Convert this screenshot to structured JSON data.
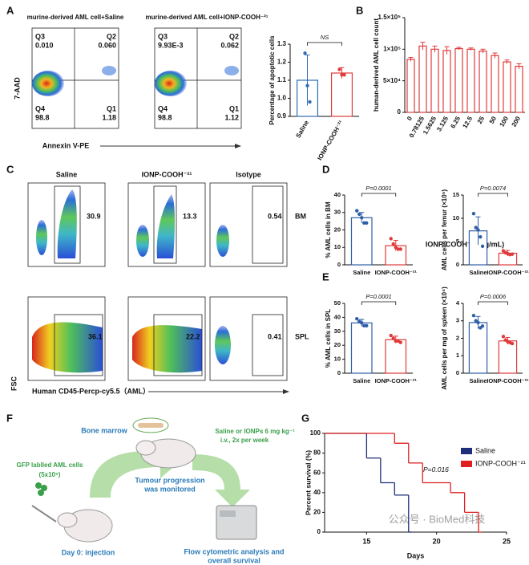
{
  "panel_labels": [
    "A",
    "B",
    "C",
    "D",
    "E",
    "F",
    "G"
  ],
  "panel_a": {
    "titles": [
      "murine-derived  AML cell+Saline",
      "murine-derived AML cell+IONP-COOH⁻²¹"
    ],
    "plots": [
      {
        "quadrants": [
          [
            "Q3",
            "0.010"
          ],
          [
            "Q2",
            "0.060"
          ],
          [
            "Q4",
            "98.8"
          ],
          [
            "Q1",
            "1.18"
          ]
        ]
      },
      {
        "quadrants": [
          [
            "Q3",
            "9.93E-3"
          ],
          [
            "Q2",
            "0.062"
          ],
          [
            "Q4",
            "98.8"
          ],
          [
            "Q1",
            "1.12"
          ]
        ]
      }
    ],
    "ylabel": "7-AAD",
    "xlabel": "Annexin V-PE"
  },
  "panel_c": {
    "columns": [
      "Saline",
      "IONP-COOH⁻²¹",
      "Isotype"
    ],
    "rows": [
      "BM",
      "SPL"
    ],
    "gates": [
      [
        "30.9",
        "13.3",
        "0.54"
      ],
      [
        "36.1",
        "22.2",
        "0.41"
      ]
    ],
    "ylabel": "FSC",
    "xlabel": "Human CD45-Percp-cy5.5（AML）"
  },
  "panel_f": {
    "bone_marrow": "Bone marrow",
    "treatment": [
      "Saline  or IONPs 6 mg kg⁻¹",
      "i.v., 2x per week"
    ],
    "cells": [
      "GFP lablled AML cells",
      "(5x10⁵)"
    ],
    "progression": [
      "Tumour progression",
      "was monitored"
    ],
    "day0": "Day 0: injection",
    "analysis": [
      "Flow cytometric analysis and",
      "overall survival"
    ]
  },
  "watermark": "公众号 · BioMed科技",
  "chart_data": [
    {
      "type": "bar",
      "ylabel": "Percentage of apoptotic cells",
      "categories": [
        "Saline",
        "IONP-COOH⁻²¹"
      ],
      "values": [
        1.1,
        1.14
      ],
      "errors": [
        0.14,
        0.03
      ],
      "points": [
        [
          1.25,
          1.07,
          0.98
        ],
        [
          1.16,
          1.13,
          1.13
        ]
      ],
      "colors": [
        "#2e6db4",
        "#e03b3b"
      ],
      "ylim": [
        0.9,
        1.3
      ],
      "yticks": [
        0.9,
        {
          "value": 1,
          "label": "1.0"
        },
        1.1,
        1.2,
        1.3
      ],
      "annotation": "NS"
    },
    {
      "type": "bar",
      "ylabel": "human-derived AML cell count",
      "xlabel": "IONP-COOH⁻²¹  (μg/mL)",
      "categories": [
        "0",
        "0.78125",
        "1.5625",
        "3.125",
        "6.25",
        "12.5",
        "25",
        "50",
        "100",
        "200"
      ],
      "values": [
        84000,
        105000,
        100000,
        98000,
        101000,
        100000,
        97000,
        90000,
        80000,
        73000
      ],
      "errors": [
        3000,
        6000,
        5000,
        6000,
        2000,
        2000,
        3000,
        4000,
        3000,
        4000
      ],
      "color": "#e03b3b",
      "ylim": [
        0,
        150000
      ],
      "yticks": [
        0,
        {
          "value": 50000,
          "label": "5×10⁴"
        },
        {
          "value": 100000,
          "label": "1×10⁵"
        },
        {
          "value": 150000,
          "label": "1.5×10⁵"
        }
      ]
    },
    {
      "type": "bar",
      "ylabel": "% AML cells in BM",
      "categories": [
        "Saline",
        "IONP-COOH⁻²¹"
      ],
      "values": [
        27,
        11
      ],
      "errors": [
        3,
        3
      ],
      "points": [
        [
          31,
          29,
          27,
          24,
          24
        ],
        [
          15,
          12,
          10,
          9,
          9
        ]
      ],
      "colors": [
        "#2e5fa8",
        "#e03b3b"
      ],
      "ylim": [
        0,
        40
      ],
      "yticks": [
        0,
        10,
        20,
        30,
        40
      ],
      "annotation": "P=0.0001"
    },
    {
      "type": "bar",
      "ylabel": "AML cells per femur (×10⁵)",
      "categories": [
        "Saline",
        "IONP-COOH⁻²¹"
      ],
      "values": [
        7.3,
        2.5
      ],
      "errors": [
        3,
        0.6
      ],
      "points": [
        [
          11,
          8,
          7.5,
          6,
          4
        ],
        [
          3,
          2.6,
          2.4,
          2.2,
          2.3
        ]
      ],
      "colors": [
        "#2e5fa8",
        "#e03b3b"
      ],
      "ylim": [
        0,
        15
      ],
      "yticks": [
        0,
        5,
        10,
        15
      ],
      "annotation": "P=0.0074"
    },
    {
      "type": "bar",
      "ylabel": "% AML cells in SPL",
      "categories": [
        "Saline",
        "IONP-COOH⁻²¹"
      ],
      "values": [
        36,
        24
      ],
      "errors": [
        2.5,
        2.5
      ],
      "points": [
        [
          39,
          37,
          36,
          34,
          34
        ],
        [
          27,
          25,
          23,
          23,
          22
        ]
      ],
      "colors": [
        "#2e5fa8",
        "#e03b3b"
      ],
      "ylim": [
        0,
        50
      ],
      "yticks": [
        0,
        10,
        20,
        30,
        40,
        50
      ],
      "annotation": "P=0.0001"
    },
    {
      "type": "bar",
      "ylabel": "AML cells per mg of spleen (×10⁴)",
      "categories": [
        "Saline",
        "IONP-COOH⁻²¹"
      ],
      "values": [
        2.9,
        1.85
      ],
      "errors": [
        0.35,
        0.2
      ],
      "points": [
        [
          3.3,
          3,
          2.9,
          2.6,
          2.7
        ],
        [
          2.1,
          1.9,
          1.8,
          1.75,
          1.7
        ]
      ],
      "colors": [
        "#2e5fa8",
        "#e03b3b"
      ],
      "ylim": [
        0,
        4
      ],
      "yticks": [
        0,
        1,
        2,
        3,
        4
      ],
      "annotation": "P=0.0006"
    },
    {
      "type": "line",
      "xlabel": "Days",
      "ylabel": "Percent survival (%)",
      "xlim": [
        12,
        25
      ],
      "xticks": [
        15,
        20,
        25
      ],
      "ylim": [
        0,
        100
      ],
      "yticks": [
        0,
        20,
        40,
        60,
        80,
        100
      ],
      "series": [
        {
          "name": "Saline",
          "color": "#1f2e7a",
          "x": [
            12,
            15,
            16,
            17,
            18
          ],
          "values": [
            100,
            75,
            50,
            37.5,
            0
          ]
        },
        {
          "name": "IONP-COOH⁻²¹",
          "color": "#e02020",
          "x": [
            12,
            17,
            18,
            19,
            21,
            22,
            23
          ],
          "values": [
            100,
            90,
            70,
            50,
            40,
            20,
            0
          ]
        }
      ],
      "annotation": "P=0.016"
    }
  ]
}
